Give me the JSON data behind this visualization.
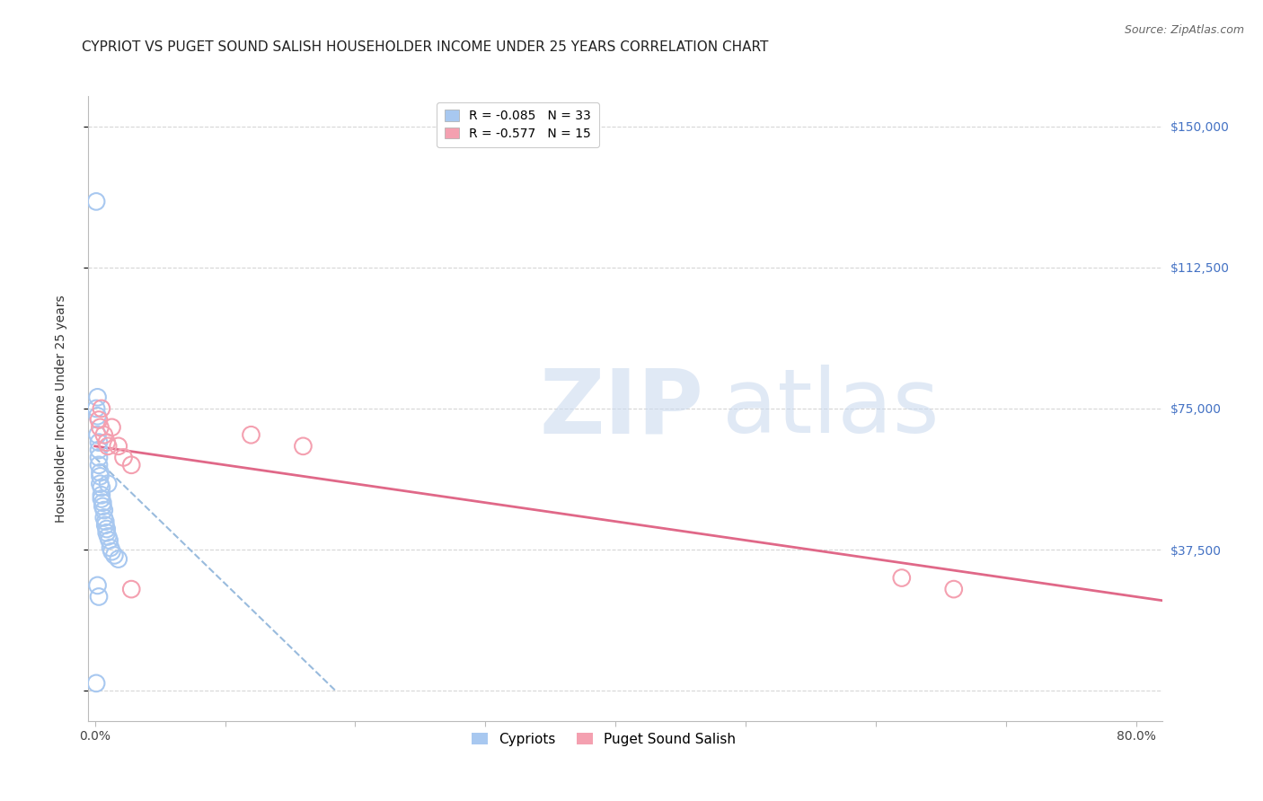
{
  "title": "CYPRIOT VS PUGET SOUND SALISH HOUSEHOLDER INCOME UNDER 25 YEARS CORRELATION CHART",
  "source": "Source: ZipAtlas.com",
  "ylabel": "Householder Income Under 25 years",
  "xlim": [
    -0.005,
    0.82
  ],
  "ylim": [
    -8000,
    158000
  ],
  "legend1_label": "R = -0.085   N = 33",
  "legend2_label": "R = -0.577   N = 15",
  "legend1_color": "#a8c8f0",
  "legend2_color": "#f4a0b0",
  "trend1_color": "#99bbdd",
  "trend2_color": "#e06888",
  "background_color": "#ffffff",
  "grid_color": "#cccccc",
  "blue_x": [
    0.001,
    0.001,
    0.002,
    0.002,
    0.002,
    0.003,
    0.003,
    0.003,
    0.003,
    0.004,
    0.004,
    0.004,
    0.005,
    0.005,
    0.005,
    0.006,
    0.006,
    0.007,
    0.007,
    0.008,
    0.008,
    0.009,
    0.009,
    0.01,
    0.01,
    0.011,
    0.012,
    0.013,
    0.015,
    0.018,
    0.002,
    0.003,
    0.001
  ],
  "blue_y": [
    130000,
    75000,
    78000,
    73000,
    68000,
    66000,
    64000,
    62000,
    60000,
    58000,
    57000,
    55000,
    54000,
    52000,
    51000,
    50000,
    49000,
    48000,
    46000,
    45000,
    44000,
    43000,
    42000,
    41000,
    55000,
    40000,
    38000,
    37000,
    36000,
    35000,
    28000,
    25000,
    2000
  ],
  "pink_x": [
    0.003,
    0.004,
    0.005,
    0.007,
    0.009,
    0.01,
    0.013,
    0.018,
    0.022,
    0.028,
    0.12,
    0.16,
    0.62,
    0.66,
    0.028
  ],
  "pink_y": [
    72000,
    70000,
    75000,
    68000,
    66000,
    65000,
    70000,
    65000,
    62000,
    60000,
    68000,
    65000,
    30000,
    27000,
    27000
  ],
  "blue_trend_x": [
    0.0,
    0.185
  ],
  "blue_trend_y": [
    62000,
    0
  ],
  "pink_trend_x": [
    0.0,
    0.82
  ],
  "pink_trend_y": [
    65000,
    24000
  ],
  "ytick_values": [
    0,
    37500,
    75000,
    112500,
    150000
  ],
  "ytick_labels": [
    "",
    "$37,500",
    "$75,000",
    "$112,500",
    "$150,000"
  ],
  "xtick_values": [
    0.0,
    0.1,
    0.2,
    0.3,
    0.4,
    0.5,
    0.6,
    0.7,
    0.8
  ],
  "xtick_labels": [
    "0.0%",
    "",
    "",
    "",
    "",
    "",
    "",
    "",
    "80.0%"
  ],
  "title_fontsize": 11,
  "axis_label_fontsize": 10,
  "tick_fontsize": 10,
  "legend_fontsize": 10,
  "source_fontsize": 9
}
